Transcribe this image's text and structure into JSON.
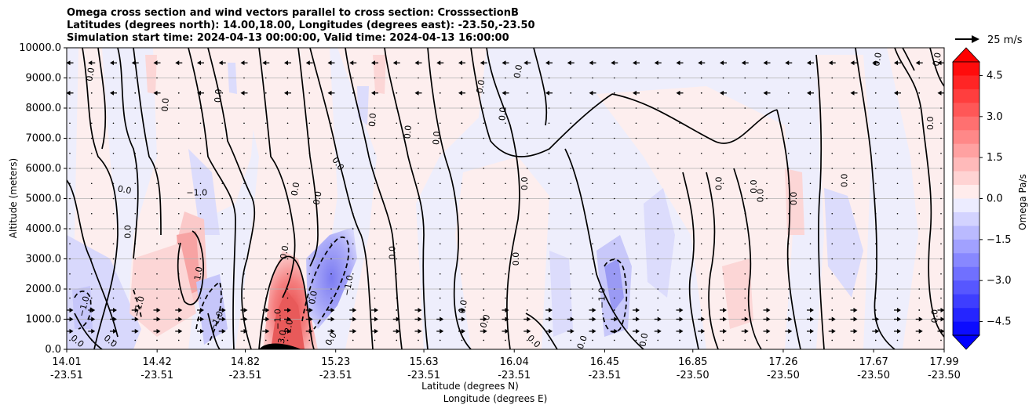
{
  "figure": {
    "title_lines": [
      "Omega cross section and wind vectors parallel to cross section: CrosssectionB",
      "Latitudes (degrees north): 14.00,18.00, Longitudes (degrees east): -23.50,-23.50",
      "Simulation start time: 2024-04-13 00:00:00, Valid time: 2024-04-13 16:00:00"
    ]
  },
  "chart_data": {
    "type": "heatmap",
    "subtype": "filled contour cross section with contour lines and wind vectors",
    "xlabel_lines": [
      "Latitude (degrees N)",
      "Longitude (degrees E)"
    ],
    "ylabel": "Altitude (meters)",
    "xlim": [
      14.01,
      17.99
    ],
    "ylim": [
      0,
      10000
    ],
    "x_ticks": [
      {
        "lat": "14.01",
        "lon": "-23.51",
        "value": 14.01
      },
      {
        "lat": "14.42",
        "lon": "-23.51",
        "value": 14.42
      },
      {
        "lat": "14.82",
        "lon": "-23.51",
        "value": 14.82
      },
      {
        "lat": "15.23",
        "lon": "-23.51",
        "value": 15.23
      },
      {
        "lat": "15.63",
        "lon": "-23.51",
        "value": 15.63
      },
      {
        "lat": "16.04",
        "lon": "-23.51",
        "value": 16.04
      },
      {
        "lat": "16.45",
        "lon": "-23.51",
        "value": 16.45
      },
      {
        "lat": "16.85",
        "lon": "-23.50",
        "value": 16.85
      },
      {
        "lat": "17.26",
        "lon": "-23.50",
        "value": 17.26
      },
      {
        "lat": "17.67",
        "lon": "-23.50",
        "value": 17.67
      },
      {
        "lat": "17.99",
        "lon": "-23.50",
        "value": 17.99
      }
    ],
    "y_ticks": [
      {
        "label": "0.0",
        "value": 0
      },
      {
        "label": "1000.0",
        "value": 1000
      },
      {
        "label": "2000.0",
        "value": 2000
      },
      {
        "label": "3000.0",
        "value": 3000
      },
      {
        "label": "4000.0",
        "value": 4000
      },
      {
        "label": "5000.0",
        "value": 5000
      },
      {
        "label": "6000.0",
        "value": 6000
      },
      {
        "label": "7000.0",
        "value": 7000
      },
      {
        "label": "8000.0",
        "value": 8000
      },
      {
        "label": "9000.0",
        "value": 9000
      },
      {
        "label": "10000.0",
        "value": 10000
      }
    ],
    "grid": "horizontal",
    "colorbar": {
      "label": "Omega Pa/s",
      "min": -5.0,
      "max": 5.0,
      "step": 0.5,
      "extend": "both",
      "ticks": [
        {
          "label": "4.5",
          "value": 4.5
        },
        {
          "label": "3.0",
          "value": 3.0
        },
        {
          "label": "1.5",
          "value": 1.5
        },
        {
          "label": "0.0",
          "value": 0.0
        },
        {
          "label": "−1.5",
          "value": -1.5
        },
        {
          "label": "−3.0",
          "value": -3.0
        },
        {
          "label": "−4.5",
          "value": -4.5
        }
      ],
      "colors": {
        "max": "#ff0000",
        "mid": "#ffffff",
        "min": "#0000ff"
      }
    },
    "quiver_key": {
      "label": "25 m/s",
      "value": 25
    },
    "wind_rows": [
      {
        "alt": 9500,
        "dirs": [
          -1,
          -1,
          -1,
          -1,
          -1,
          -1,
          -1,
          -1,
          -1,
          -1,
          -1,
          -1,
          -1,
          -1,
          -1,
          -1,
          -1,
          -1,
          -1,
          -1,
          -1,
          -1,
          -1,
          -1,
          -1,
          -1,
          -1,
          -1,
          -1,
          -1,
          -1,
          -1,
          -1,
          -1,
          -1,
          -1,
          -1,
          -1,
          -1,
          -1,
          -1
        ]
      },
      {
        "alt": 8500,
        "dirs": [
          -1,
          0,
          -1,
          0,
          -1,
          0,
          -1,
          0,
          -1,
          0,
          -1,
          0,
          -1,
          0,
          -1,
          0,
          -1,
          0,
          -1,
          0,
          -1,
          0,
          -1,
          0,
          -1,
          0,
          -1,
          0,
          -1,
          0,
          -1,
          0,
          -1,
          0,
          -1,
          0,
          -1,
          0,
          -1,
          0,
          -1
        ]
      },
      {
        "alt": 1300,
        "dirs": [
          1,
          1,
          1,
          1,
          1,
          1,
          1,
          1,
          1,
          1,
          1,
          1,
          1,
          1,
          1,
          0,
          1,
          0,
          1,
          0,
          1,
          0,
          1,
          0,
          1,
          0,
          1,
          0,
          1,
          0,
          1,
          0,
          1,
          0,
          1,
          0,
          1,
          0,
          1,
          0,
          1
        ]
      },
      {
        "alt": 1000,
        "dirs": [
          1,
          1,
          1,
          1,
          1,
          1,
          1,
          1,
          1,
          1,
          1,
          1,
          1,
          1,
          1,
          1,
          1,
          1,
          1,
          1,
          1,
          1,
          1,
          1,
          1,
          1,
          1,
          1,
          1,
          1,
          1,
          1,
          1,
          1,
          1,
          1,
          1,
          1,
          1,
          1,
          1
        ]
      },
      {
        "alt": 600,
        "dirs": [
          1,
          1,
          1,
          1,
          1,
          1,
          1,
          1,
          1,
          1,
          1,
          1,
          1,
          1,
          1,
          1,
          1,
          1,
          1,
          1,
          1,
          1,
          1,
          1,
          1,
          1,
          1,
          1,
          1,
          1,
          1,
          1,
          1,
          1,
          1,
          1,
          1,
          1,
          1,
          1,
          1
        ]
      }
    ],
    "contour_labels": [
      {
        "text": "0.0",
        "x": 14.13,
        "y": 9100,
        "rot": -80
      },
      {
        "text": "0.0",
        "x": 14.47,
        "y": 8100,
        "rot": -85
      },
      {
        "text": "0.0",
        "x": 14.71,
        "y": 8400,
        "rot": -85
      },
      {
        "text": "0.0",
        "x": 14.27,
        "y": 5200,
        "rot": 10
      },
      {
        "text": "−1.0",
        "x": 14.6,
        "y": 5100,
        "rot": 0
      },
      {
        "text": "0.0",
        "x": 14.3,
        "y": 3900,
        "rot": -90
      },
      {
        "text": "0.0",
        "x": 15.06,
        "y": 5300,
        "rot": -80
      },
      {
        "text": "0.0",
        "x": 15.16,
        "y": 5000,
        "rot": -80
      },
      {
        "text": "0.0",
        "x": 15.01,
        "y": 3200,
        "rot": -80
      },
      {
        "text": "0.0",
        "x": 15.41,
        "y": 7600,
        "rot": -85
      },
      {
        "text": "0.0",
        "x": 15.57,
        "y": 7200,
        "rot": -85
      },
      {
        "text": "0.0",
        "x": 15.7,
        "y": 7000,
        "rot": -85
      },
      {
        "text": "0.0",
        "x": 15.23,
        "y": 6100,
        "rot": 55
      },
      {
        "text": "0.0",
        "x": 15.5,
        "y": 3200,
        "rot": -90
      },
      {
        "text": "0.0",
        "x": 16.0,
        "y": 7800,
        "rot": -85
      },
      {
        "text": "0.0",
        "x": 15.9,
        "y": 8700,
        "rot": -80
      },
      {
        "text": "0.0",
        "x": 16.07,
        "y": 9200,
        "rot": -80
      },
      {
        "text": "0.0",
        "x": 16.1,
        "y": 5500,
        "rot": -90
      },
      {
        "text": "0.0",
        "x": 16.06,
        "y": 3000,
        "rot": -90
      },
      {
        "text": "0.0",
        "x": 16.98,
        "y": 5500,
        "rot": -90
      },
      {
        "text": "0.0",
        "x": 17.14,
        "y": 5400,
        "rot": -90
      },
      {
        "text": "0.0",
        "x": 17.17,
        "y": 5100,
        "rot": -90
      },
      {
        "text": "0.0",
        "x": 17.32,
        "y": 5000,
        "rot": -90
      },
      {
        "text": "0.0",
        "x": 17.55,
        "y": 5600,
        "rot": -90
      },
      {
        "text": "0.0",
        "x": 17.94,
        "y": 7500,
        "rot": -90
      },
      {
        "text": "0.0",
        "x": 17.97,
        "y": 9600,
        "rot": -80
      },
      {
        "text": "0.0",
        "x": 17.7,
        "y": 9600,
        "rot": -80
      },
      {
        "text": "−1.0",
        "x": 14.1,
        "y": 1400,
        "rot": -75
      },
      {
        "text": "−1.0",
        "x": 14.35,
        "y": 1400,
        "rot": -75
      },
      {
        "text": "−1.0",
        "x": 14.7,
        "y": 900,
        "rot": -65
      },
      {
        "text": "1.0",
        "x": 14.62,
        "y": 2500,
        "rot": -80
      },
      {
        "text": "−1.0",
        "x": 14.98,
        "y": 1000,
        "rot": -90
      },
      {
        "text": "2.0",
        "x": 15.03,
        "y": 750,
        "rot": -80
      },
      {
        "text": "3.0",
        "x": 15.0,
        "y": 400,
        "rot": -80
      },
      {
        "text": "0.0",
        "x": 15.14,
        "y": 1700,
        "rot": -80
      },
      {
        "text": "−1.0",
        "x": 15.3,
        "y": 2100,
        "rot": -80
      },
      {
        "text": "0.0",
        "x": 14.05,
        "y": 200,
        "rot": 40
      },
      {
        "text": "0.0",
        "x": 14.2,
        "y": 200,
        "rot": 40
      },
      {
        "text": "0.0",
        "x": 15.22,
        "y": 300,
        "rot": -60
      },
      {
        "text": "0.0",
        "x": 15.82,
        "y": 1400,
        "rot": -80
      },
      {
        "text": "0.0",
        "x": 15.92,
        "y": 900,
        "rot": -70
      },
      {
        "text": "0.0",
        "x": 16.12,
        "y": 200,
        "rot": 45
      },
      {
        "text": "0.0",
        "x": 16.36,
        "y": 200,
        "rot": -70
      },
      {
        "text": "0.0",
        "x": 16.64,
        "y": 300,
        "rot": -80
      },
      {
        "text": "−1.0",
        "x": 16.45,
        "y": 1700,
        "rot": -90
      },
      {
        "text": "0.0",
        "x": 17.96,
        "y": 1100,
        "rot": -90
      }
    ]
  }
}
